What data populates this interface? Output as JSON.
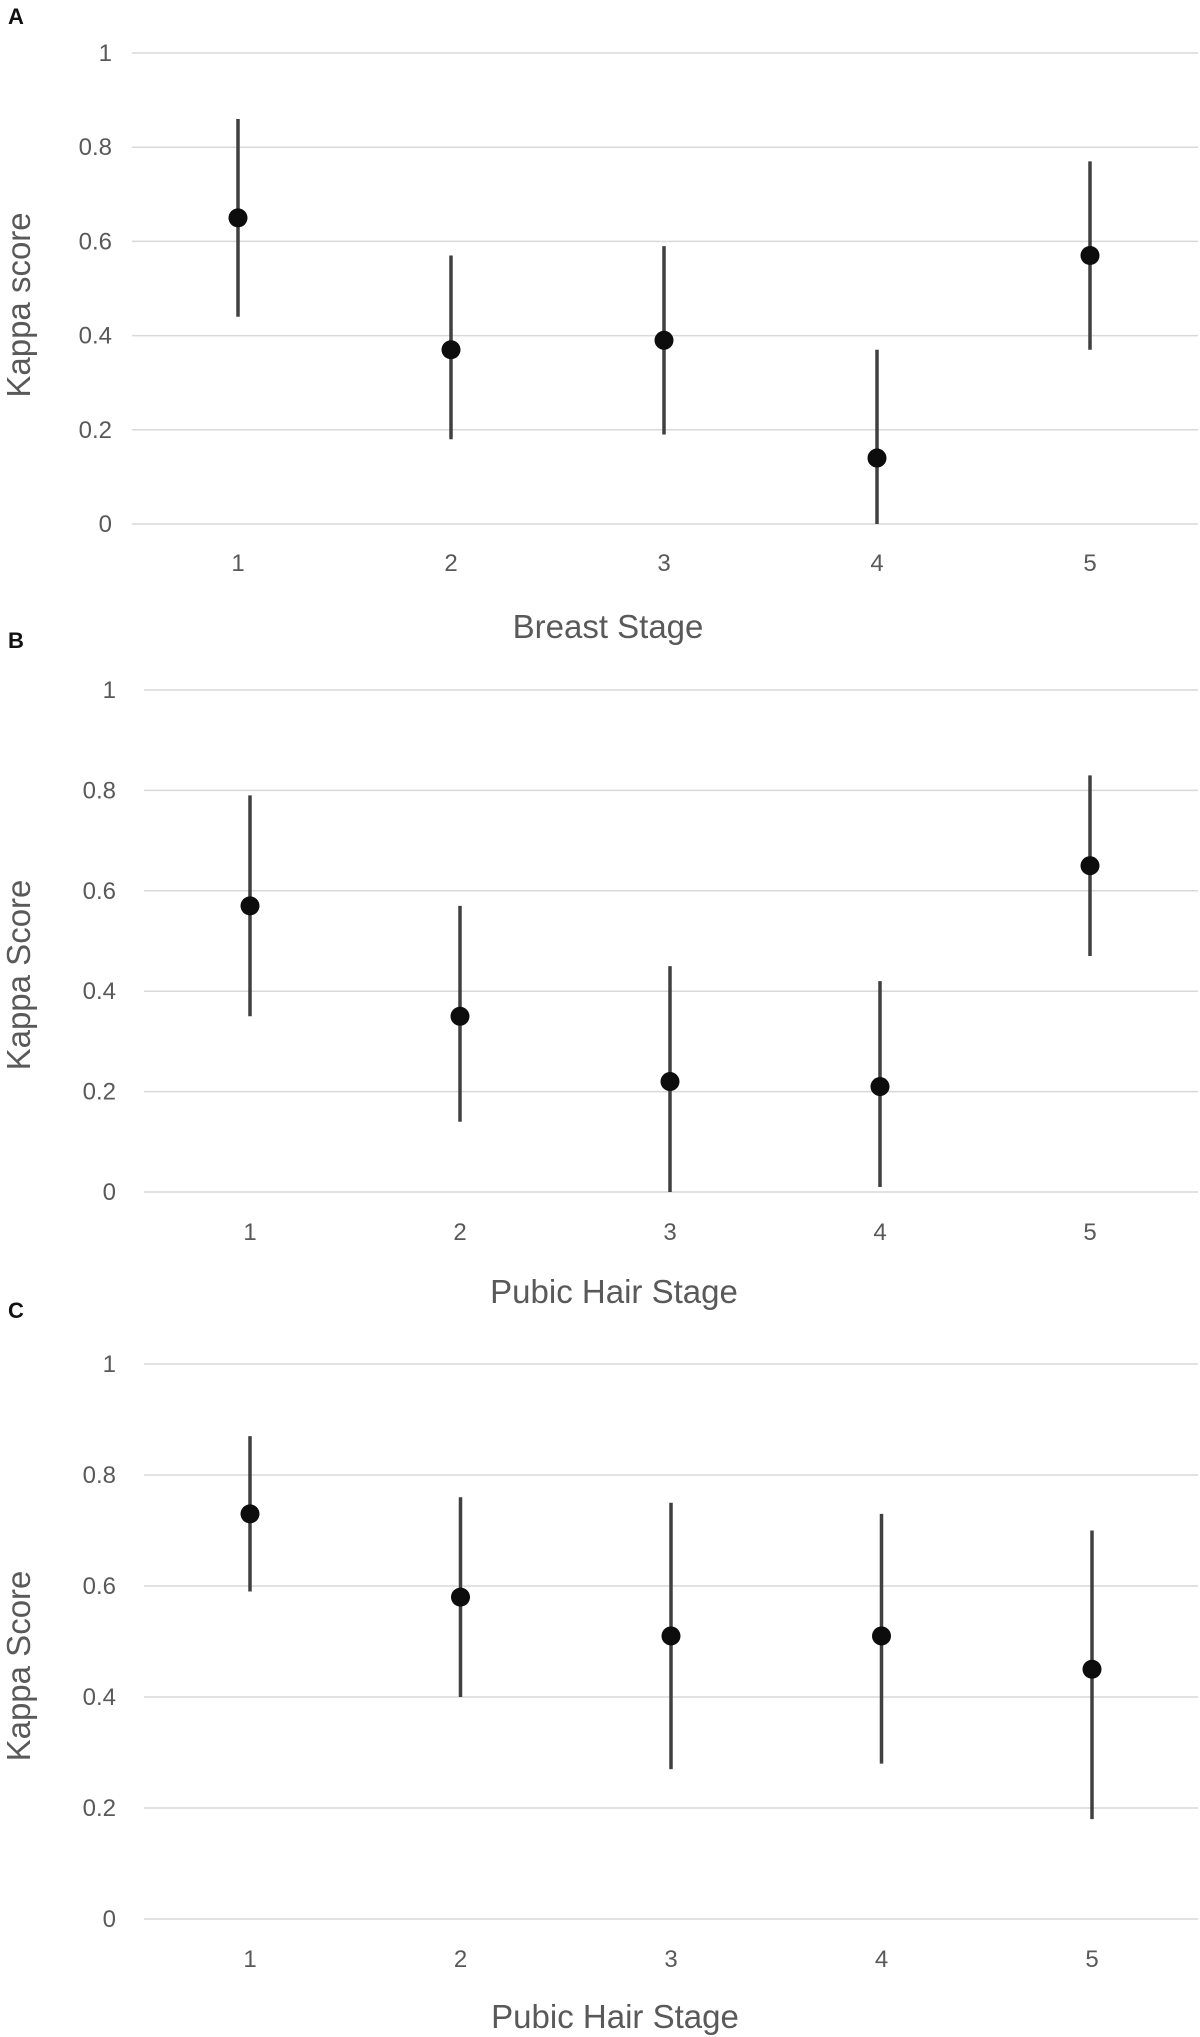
{
  "chart_data": [
    {
      "panel": "A",
      "type": "scatter",
      "xlabel": "Breast Stage",
      "ylabel": "Kappa score",
      "ylim": [
        0,
        1
      ],
      "yticks": [
        "0",
        "0.2",
        "0.4",
        "0.6",
        "0.8",
        "1"
      ],
      "categories": [
        "1",
        "2",
        "3",
        "4",
        "5"
      ],
      "values": [
        0.65,
        0.37,
        0.39,
        0.14,
        0.57
      ],
      "ci_low": [
        0.44,
        0.18,
        0.19,
        0.0,
        0.37
      ],
      "ci_high": [
        0.86,
        0.57,
        0.59,
        0.37,
        0.77
      ]
    },
    {
      "panel": "B",
      "type": "scatter",
      "xlabel": "Pubic Hair Stage",
      "ylabel": "Kappa Score",
      "ylim": [
        0,
        1
      ],
      "yticks": [
        "0",
        "0.2",
        "0.4",
        "0.6",
        "0.8",
        "1"
      ],
      "categories": [
        "1",
        "2",
        "3",
        "4",
        "5"
      ],
      "values": [
        0.57,
        0.35,
        0.22,
        0.21,
        0.65
      ],
      "ci_low": [
        0.35,
        0.14,
        0.0,
        0.01,
        0.47
      ],
      "ci_high": [
        0.79,
        0.57,
        0.45,
        0.42,
        0.83
      ]
    },
    {
      "panel": "C",
      "type": "scatter",
      "xlabel": "Pubic Hair Stage",
      "ylabel": "Kappa Score",
      "ylim": [
        0,
        1
      ],
      "yticks": [
        "0",
        "0.2",
        "0.4",
        "0.6",
        "0.8",
        "1"
      ],
      "categories": [
        "1",
        "2",
        "3",
        "4",
        "5"
      ],
      "values": [
        0.73,
        0.58,
        0.51,
        0.51,
        0.45
      ],
      "ci_low": [
        0.59,
        0.4,
        0.27,
        0.28,
        0.18
      ],
      "ci_high": [
        0.87,
        0.76,
        0.75,
        0.73,
        0.7
      ]
    }
  ]
}
